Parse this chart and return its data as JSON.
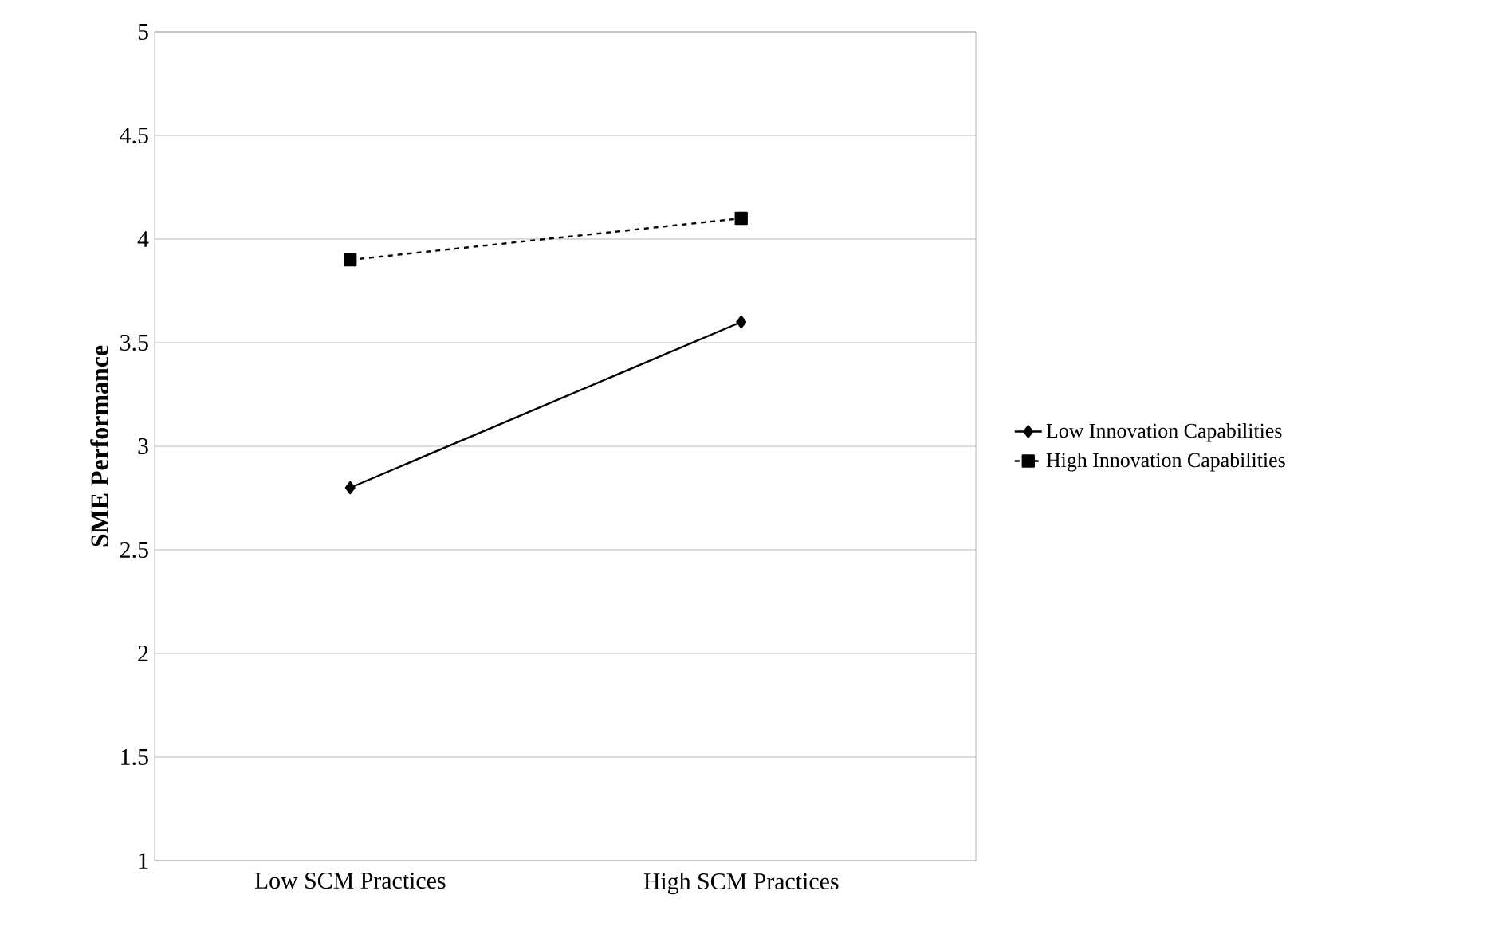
{
  "chart_data": {
    "type": "line",
    "ylabel": "SME Performance",
    "categories": [
      "Low SCM Practices",
      "High SCM Practices"
    ],
    "series": [
      {
        "name": "Low Innovation Capabilities",
        "color": "#000000",
        "values": [
          2.8,
          3.6
        ],
        "marker": "diamond",
        "line_style": "solid"
      },
      {
        "name": "High Innovation Capabilities",
        "color": "#000000",
        "values": [
          3.9,
          4.1
        ],
        "marker": "square",
        "line_style": "dashed"
      }
    ],
    "ylim": [
      1,
      5
    ],
    "yticks": [
      1,
      1.5,
      2,
      2.5,
      3,
      3.5,
      4,
      4.5,
      5
    ],
    "grid": "y",
    "legend": "right"
  }
}
